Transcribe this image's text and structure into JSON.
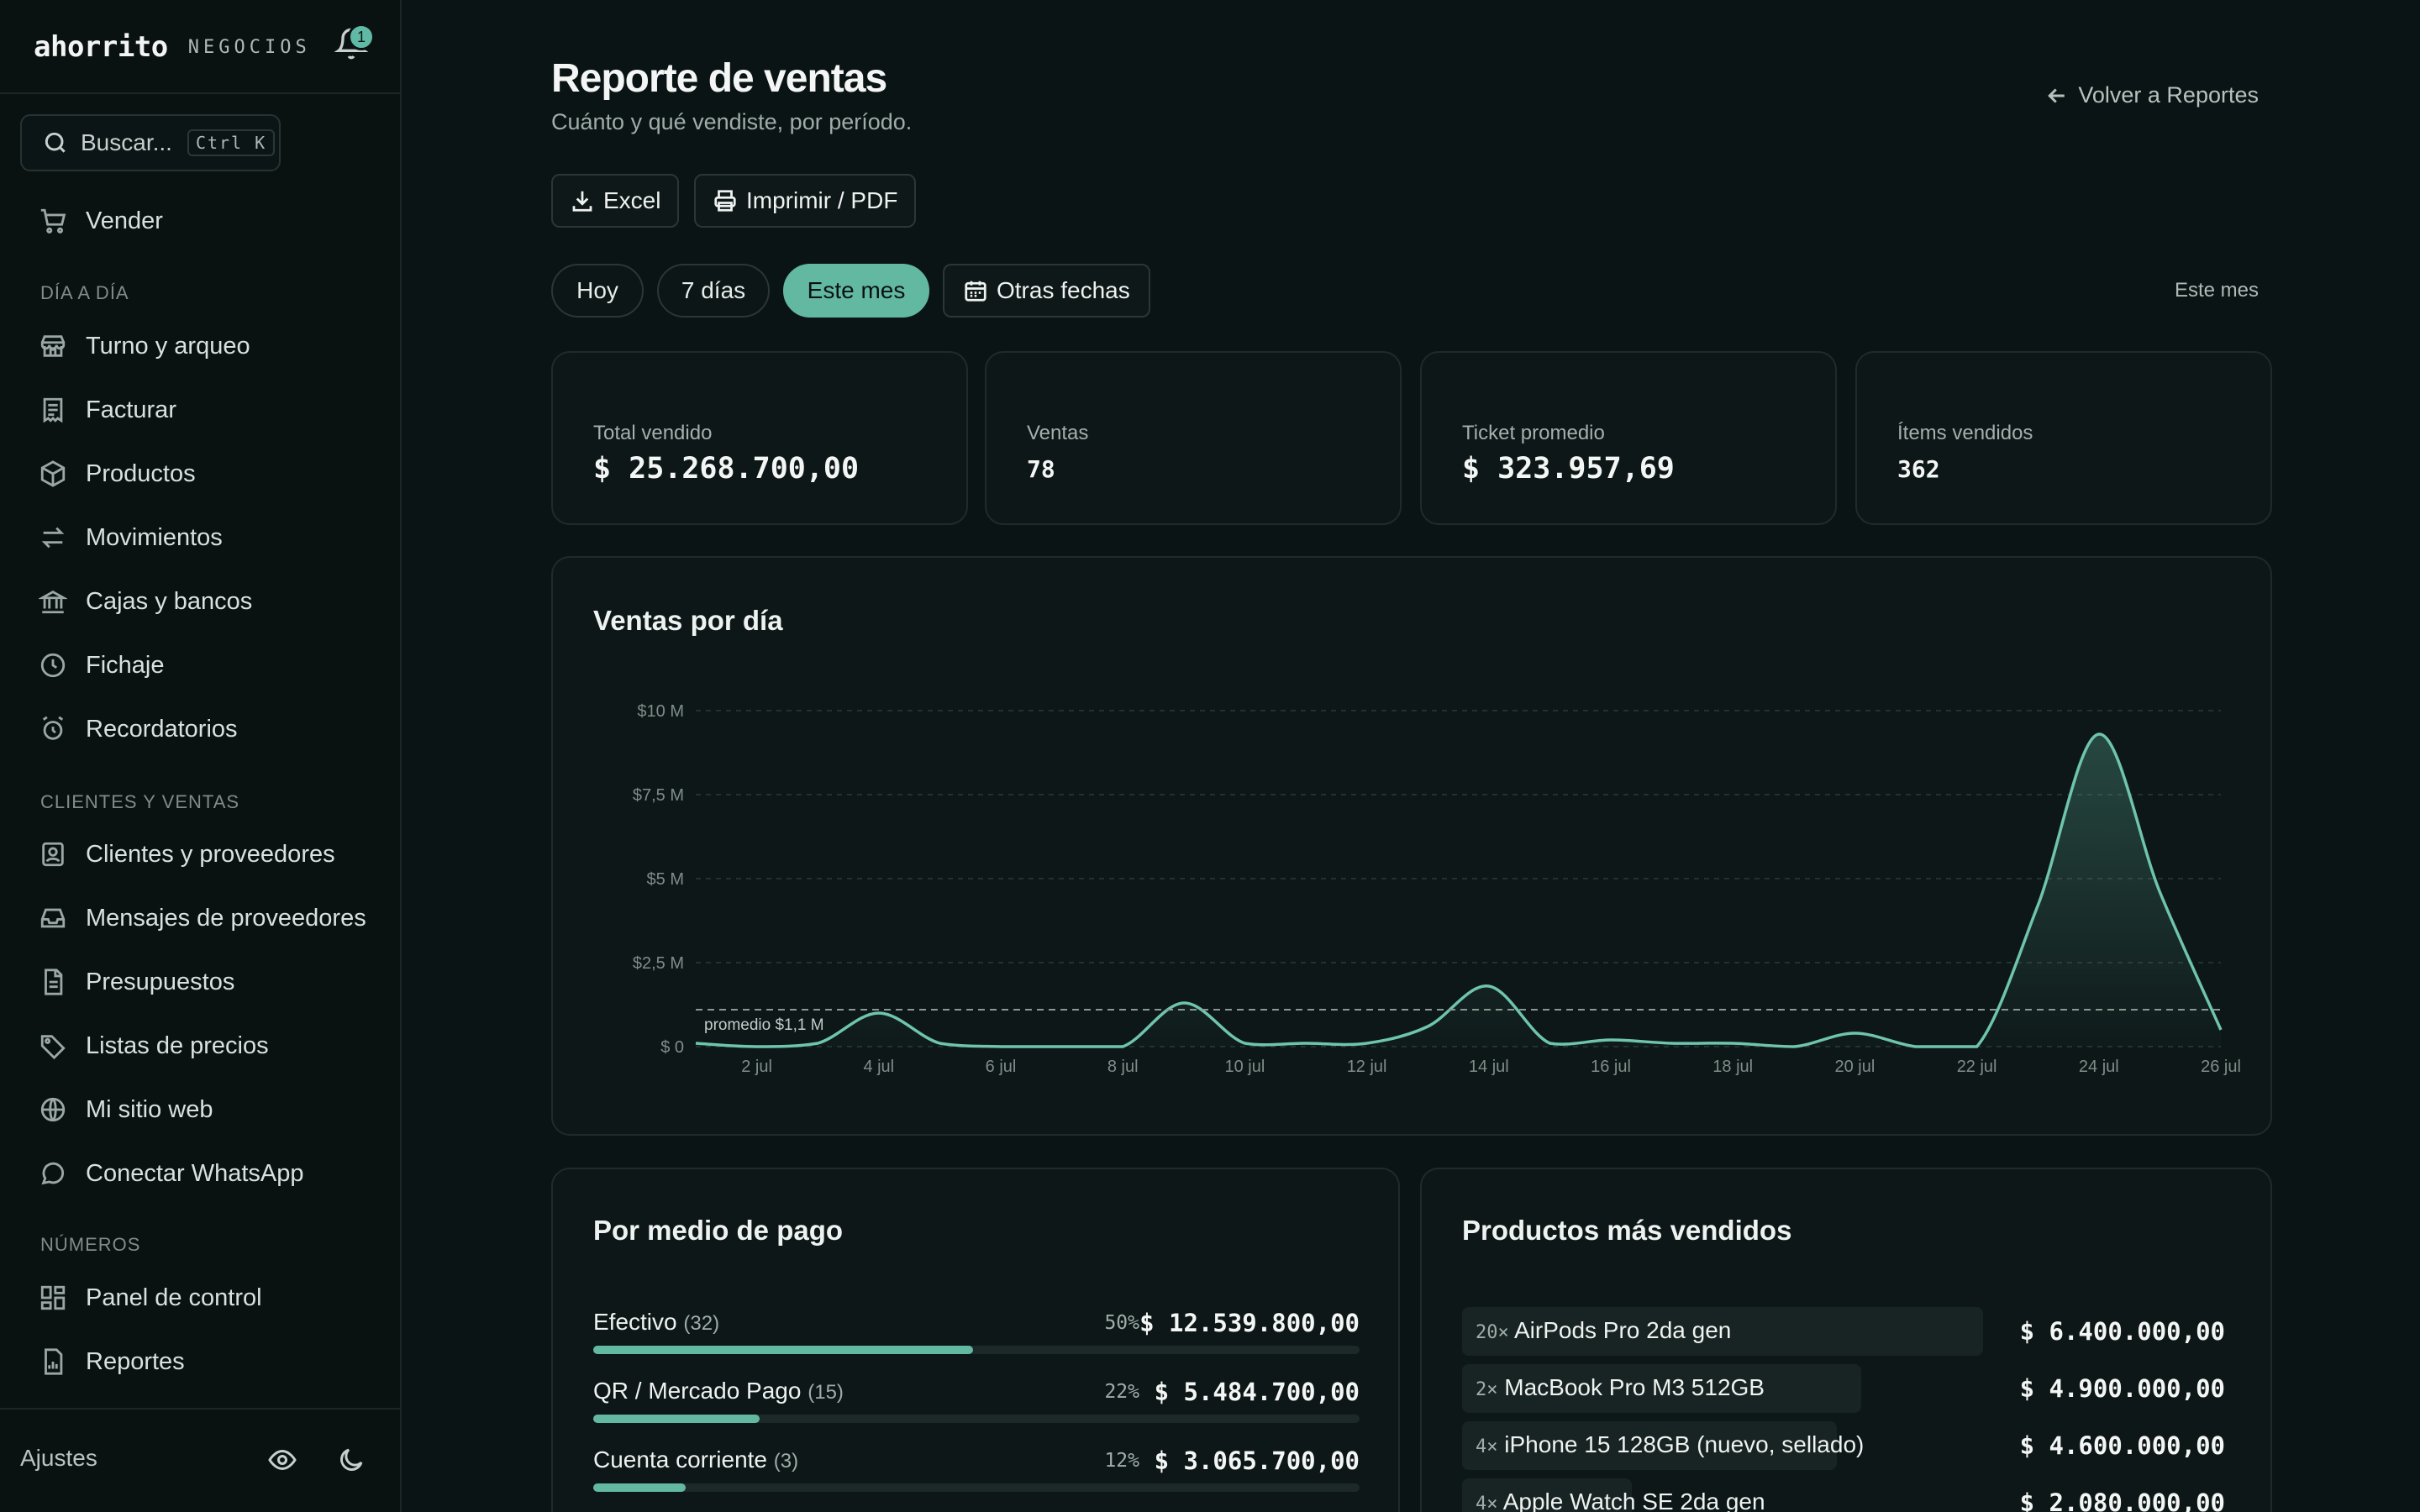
{
  "brand": {
    "name": "ahorrito",
    "sub": "NEGOCIOS",
    "notifications": "1"
  },
  "search": {
    "placeholder": "Buscar...",
    "shortcut": "Ctrl K"
  },
  "sidebar": {
    "primary": {
      "label": "Vender",
      "icon": "cart-icon"
    },
    "sections": [
      {
        "title": "DÍA A DÍA",
        "items": [
          {
            "label": "Turno y arqueo",
            "icon": "store-icon"
          },
          {
            "label": "Facturar",
            "icon": "receipt-icon"
          },
          {
            "label": "Productos",
            "icon": "box-icon"
          },
          {
            "label": "Movimientos",
            "icon": "arrows-icon"
          },
          {
            "label": "Cajas y bancos",
            "icon": "bank-icon"
          },
          {
            "label": "Fichaje",
            "icon": "clock-icon"
          },
          {
            "label": "Recordatorios",
            "icon": "alarm-icon"
          }
        ]
      },
      {
        "title": "CLIENTES Y VENTAS",
        "items": [
          {
            "label": "Clientes y proveedores",
            "icon": "contacts-icon"
          },
          {
            "label": "Mensajes de proveedores",
            "icon": "inbox-icon"
          },
          {
            "label": "Presupuestos",
            "icon": "document-icon"
          },
          {
            "label": "Listas de precios",
            "icon": "tag-icon"
          },
          {
            "label": "Mi sitio web",
            "icon": "globe-icon"
          },
          {
            "label": "Conectar WhatsApp",
            "icon": "chat-icon"
          }
        ]
      },
      {
        "title": "NÚMEROS",
        "items": [
          {
            "label": "Panel de control",
            "icon": "dashboard-icon"
          },
          {
            "label": "Reportes",
            "icon": "report-icon"
          }
        ]
      }
    ],
    "settings": "Ajustes"
  },
  "header": {
    "title": "Reporte de ventas",
    "subtitle": "Cuánto y qué vendiste, por período.",
    "back": "Volver a Reportes"
  },
  "actions": {
    "excel": "Excel",
    "print": "Imprimir / PDF"
  },
  "filters": {
    "options": [
      "Hoy",
      "7 días",
      "Este mes"
    ],
    "active": "Este mes",
    "custom": "Otras fechas",
    "current_period": "Este mes"
  },
  "stats": [
    {
      "label": "Total vendido",
      "value": "$ 25.268.700,00"
    },
    {
      "label": "Ventas",
      "value": "78"
    },
    {
      "label": "Ticket promedio",
      "value": "$ 323.957,69"
    },
    {
      "label": "Ítems vendidos",
      "value": "362"
    }
  ],
  "chart_card": {
    "title": "Ventas por día"
  },
  "chart_data": {
    "type": "area",
    "title": "Ventas por día",
    "y_ticks": [
      "$0",
      "$2,5 M",
      "$5 M",
      "$7,5 M",
      "$10 M"
    ],
    "y_tick_labels": [
      "$ 0",
      "$2,5 M",
      "$5 M",
      "$7,5 M",
      "$10 M"
    ],
    "ylim": [
      0,
      10
    ],
    "y_unit": "millones $",
    "x_tick_labels": [
      "2 jul",
      "4 jul",
      "6 jul",
      "8 jul",
      "10 jul",
      "12 jul",
      "14 jul",
      "16 jul",
      "18 jul",
      "20 jul",
      "22 jul",
      "24 jul",
      "26 jul"
    ],
    "x": [
      "1 jul",
      "2 jul",
      "3 jul",
      "4 jul",
      "5 jul",
      "6 jul",
      "7 jul",
      "8 jul",
      "9 jul",
      "10 jul",
      "11 jul",
      "12 jul",
      "13 jul",
      "14 jul",
      "15 jul",
      "16 jul",
      "17 jul",
      "18 jul",
      "19 jul",
      "20 jul",
      "21 jul",
      "22 jul",
      "23 jul",
      "24 jul",
      "25 jul",
      "26 jul"
    ],
    "values": [
      0.1,
      0,
      0.1,
      1.0,
      0.1,
      0,
      0,
      0,
      1.3,
      0.1,
      0.1,
      0.1,
      0.6,
      1.8,
      0.1,
      0.2,
      0.1,
      0.1,
      0,
      0.4,
      0,
      0,
      4.2,
      9.3,
      4.6,
      0.5
    ],
    "average": {
      "value": 1.1,
      "label": "promedio $1,1 M"
    },
    "grid": true
  },
  "payments": {
    "title": "Por medio de pago",
    "rows": [
      {
        "name": "Efectivo",
        "count": "(32)",
        "pct": "50%",
        "amount": "$ 12.539.800,00",
        "share": 0.496
      },
      {
        "name": "QR / Mercado Pago",
        "count": "(15)",
        "pct": "22%",
        "amount": "$ 5.484.700,00",
        "share": 0.217
      },
      {
        "name": "Cuenta corriente",
        "count": "(3)",
        "pct": "12%",
        "amount": "$ 3.065.700,00",
        "share": 0.121
      }
    ]
  },
  "products": {
    "title": "Productos más vendidos",
    "rows": [
      {
        "qty": "20×",
        "name": "AirPods Pro 2da gen",
        "amount": "$ 6.400.000,00",
        "share": 1.0
      },
      {
        "qty": "2×",
        "name": "MacBook Pro M3 512GB",
        "amount": "$ 4.900.000,00",
        "share": 0.766
      },
      {
        "qty": "4×",
        "name": "iPhone 15 128GB (nuevo, sellado)",
        "amount": "$ 4.600.000,00",
        "share": 0.719
      },
      {
        "qty": "4×",
        "name": "Apple Watch SE 2da gen",
        "amount": "$ 2.080.000,00",
        "share": 0.325
      }
    ]
  },
  "colors": {
    "accent": "#63b8a2",
    "background": "#0b1414",
    "card": "#0d1717"
  }
}
